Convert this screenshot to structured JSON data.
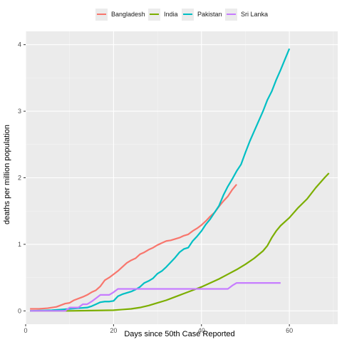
{
  "chart_data": {
    "type": "line",
    "title": "",
    "xlabel": "Days since 50th Case Reported",
    "ylabel": "deaths per million population",
    "xlim": [
      0,
      71
    ],
    "ylim": [
      -0.2,
      4.2
    ],
    "x_ticks": [
      0,
      20,
      40,
      60
    ],
    "y_ticks": [
      0,
      1,
      2,
      3,
      4
    ],
    "x_tick_labels": [
      "0",
      "20",
      "40",
      "60"
    ],
    "y_tick_labels": [
      "0",
      "1",
      "2",
      "3",
      "4"
    ],
    "grid": true,
    "legend_position": "top",
    "series": [
      {
        "name": "Bangladesh",
        "color": "#F8766D",
        "points": [
          [
            1,
            0.03
          ],
          [
            3,
            0.03
          ],
          [
            5,
            0.04
          ],
          [
            7,
            0.06
          ],
          [
            9,
            0.11
          ],
          [
            10,
            0.12
          ],
          [
            11,
            0.16
          ],
          [
            13,
            0.21
          ],
          [
            14,
            0.24
          ],
          [
            15,
            0.28
          ],
          [
            16,
            0.31
          ],
          [
            17,
            0.37
          ],
          [
            18,
            0.46
          ],
          [
            19,
            0.5
          ],
          [
            20,
            0.55
          ],
          [
            21,
            0.6
          ],
          [
            22,
            0.66
          ],
          [
            23,
            0.72
          ],
          [
            24,
            0.76
          ],
          [
            25,
            0.79
          ],
          [
            26,
            0.85
          ],
          [
            27,
            0.88
          ],
          [
            28,
            0.92
          ],
          [
            29,
            0.95
          ],
          [
            30,
            0.99
          ],
          [
            31,
            1.02
          ],
          [
            32,
            1.05
          ],
          [
            33,
            1.06
          ],
          [
            34,
            1.08
          ],
          [
            35,
            1.1
          ],
          [
            36,
            1.13
          ],
          [
            37,
            1.15
          ],
          [
            38,
            1.2
          ],
          [
            39,
            1.24
          ],
          [
            40,
            1.29
          ],
          [
            41,
            1.35
          ],
          [
            42,
            1.42
          ],
          [
            43,
            1.48
          ],
          [
            44,
            1.57
          ],
          [
            45,
            1.65
          ],
          [
            46,
            1.72
          ],
          [
            47,
            1.82
          ],
          [
            48,
            1.9
          ]
        ]
      },
      {
        "name": "India",
        "color": "#7CAE00",
        "points": [
          [
            1,
            0.0
          ],
          [
            10,
            0.0
          ],
          [
            15,
            0.005
          ],
          [
            20,
            0.01
          ],
          [
            22,
            0.02
          ],
          [
            24,
            0.03
          ],
          [
            26,
            0.05
          ],
          [
            28,
            0.08
          ],
          [
            30,
            0.12
          ],
          [
            32,
            0.16
          ],
          [
            34,
            0.21
          ],
          [
            36,
            0.26
          ],
          [
            38,
            0.31
          ],
          [
            40,
            0.36
          ],
          [
            42,
            0.42
          ],
          [
            44,
            0.48
          ],
          [
            46,
            0.55
          ],
          [
            48,
            0.62
          ],
          [
            50,
            0.7
          ],
          [
            52,
            0.79
          ],
          [
            54,
            0.9
          ],
          [
            55,
            0.98
          ],
          [
            56,
            1.1
          ],
          [
            57,
            1.2
          ],
          [
            58,
            1.28
          ],
          [
            60,
            1.4
          ],
          [
            62,
            1.55
          ],
          [
            64,
            1.68
          ],
          [
            66,
            1.85
          ],
          [
            68,
            2.0
          ],
          [
            69,
            2.07
          ]
        ]
      },
      {
        "name": "Pakistan",
        "color": "#00BFC4",
        "points": [
          [
            1,
            0.0
          ],
          [
            6,
            0.01
          ],
          [
            8,
            0.02
          ],
          [
            10,
            0.03
          ],
          [
            12,
            0.04
          ],
          [
            14,
            0.05
          ],
          [
            15,
            0.07
          ],
          [
            16,
            0.1
          ],
          [
            17,
            0.13
          ],
          [
            18,
            0.14
          ],
          [
            19,
            0.14
          ],
          [
            20,
            0.15
          ],
          [
            21,
            0.22
          ],
          [
            22,
            0.25
          ],
          [
            23,
            0.27
          ],
          [
            24,
            0.29
          ],
          [
            25,
            0.32
          ],
          [
            26,
            0.36
          ],
          [
            27,
            0.42
          ],
          [
            28,
            0.45
          ],
          [
            29,
            0.49
          ],
          [
            30,
            0.56
          ],
          [
            31,
            0.6
          ],
          [
            32,
            0.66
          ],
          [
            33,
            0.73
          ],
          [
            34,
            0.8
          ],
          [
            35,
            0.88
          ],
          [
            36,
            0.93
          ],
          [
            37,
            0.95
          ],
          [
            38,
            1.05
          ],
          [
            39,
            1.12
          ],
          [
            40,
            1.2
          ],
          [
            41,
            1.3
          ],
          [
            42,
            1.38
          ],
          [
            43,
            1.48
          ],
          [
            44,
            1.58
          ],
          [
            45,
            1.74
          ],
          [
            46,
            1.87
          ],
          [
            47,
            1.98
          ],
          [
            48,
            2.1
          ],
          [
            49,
            2.2
          ],
          [
            50,
            2.38
          ],
          [
            51,
            2.55
          ],
          [
            52,
            2.7
          ],
          [
            53,
            2.85
          ],
          [
            54,
            3.0
          ],
          [
            55,
            3.17
          ],
          [
            56,
            3.3
          ],
          [
            57,
            3.47
          ],
          [
            58,
            3.62
          ],
          [
            59,
            3.78
          ],
          [
            60,
            3.94
          ]
        ]
      },
      {
        "name": "Sri Lanka",
        "color": "#C77CFF",
        "points": [
          [
            1,
            0.0
          ],
          [
            9,
            0.0
          ],
          [
            10,
            0.05
          ],
          [
            12,
            0.05
          ],
          [
            13,
            0.1
          ],
          [
            14,
            0.1
          ],
          [
            15,
            0.14
          ],
          [
            16,
            0.19
          ],
          [
            17,
            0.24
          ],
          [
            19,
            0.24
          ],
          [
            20,
            0.28
          ],
          [
            21,
            0.33
          ],
          [
            45,
            0.33
          ],
          [
            46,
            0.33
          ],
          [
            47,
            0.38
          ],
          [
            48,
            0.42
          ],
          [
            58,
            0.42
          ]
        ]
      }
    ]
  }
}
